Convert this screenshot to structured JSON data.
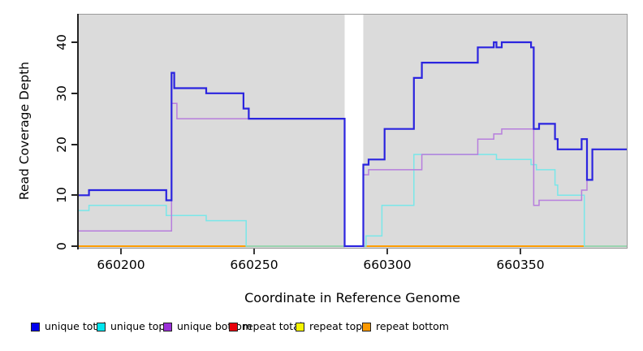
{
  "figure": {
    "title": "",
    "background": "#FFFFFF",
    "panel_background": "#DBDBDB"
  },
  "x_axis": {
    "label": "Coordinate in Reference Genome",
    "tick_labels": [
      "660200",
      "660250",
      "660300",
      "660350"
    ],
    "tick_values": [
      660200,
      660250,
      660300,
      660350
    ]
  },
  "y_axis": {
    "label": "Read Coverage Depth",
    "tick_labels": [
      "0",
      "10",
      "20",
      "30",
      "40"
    ],
    "tick_values": [
      0,
      10,
      20,
      30,
      40
    ]
  },
  "legend": {
    "items": [
      {
        "label": "unique total",
        "color": "#0000EE"
      },
      {
        "label": "unique top",
        "color": "#00E5EE"
      },
      {
        "label": "unique bottom",
        "color": "#9B30D8"
      },
      {
        "label": "repeat total",
        "color": "#E8000B"
      },
      {
        "label": "repeat top",
        "color": "#F5F500"
      },
      {
        "label": "repeat bottom",
        "color": "#FB9902"
      }
    ]
  },
  "chart_data": {
    "type": "line",
    "subtype": "step",
    "title": "",
    "xlabel": "Coordinate in Reference Genome",
    "ylabel": "Read Coverage Depth",
    "xlim": [
      660184,
      660390
    ],
    "ylim": [
      0,
      45
    ],
    "x_ticks": [
      660200,
      660250,
      660300,
      660350
    ],
    "y_ticks": [
      0,
      10,
      20,
      30,
      40
    ],
    "grid": false,
    "legend_position": "bottom",
    "gap_region": {
      "x_start": 660284,
      "x_end": 660291,
      "color": "#FFFFFF"
    },
    "x_end": 660390,
    "series": [
      {
        "name": "repeat total",
        "color": "#DD0000",
        "width": 1.2,
        "points": [
          [
            660184,
            0
          ]
        ]
      },
      {
        "name": "repeat top",
        "color": "#F0F000",
        "width": 1.2,
        "points": [
          [
            660184,
            0
          ]
        ]
      },
      {
        "name": "repeat bottom",
        "color": "#FF9D00",
        "width": 2,
        "points": [
          [
            660184,
            0
          ]
        ]
      },
      {
        "name": "unique top",
        "color": "#79E7E9",
        "width": 1.5,
        "points": [
          [
            660184,
            7
          ],
          [
            660188,
            8
          ],
          [
            660217,
            6
          ],
          [
            660232,
            5
          ],
          [
            660247,
            0
          ],
          [
            660292,
            2
          ],
          [
            660298,
            8
          ],
          [
            660310,
            18
          ],
          [
            660341,
            17
          ],
          [
            660354,
            16
          ],
          [
            660356,
            15
          ],
          [
            660363,
            12
          ],
          [
            660364,
            10
          ],
          [
            660374,
            0
          ]
        ]
      },
      {
        "name": "unique bottom",
        "color": "#B77EDD",
        "width": 1.5,
        "points": [
          [
            660184,
            3
          ],
          [
            660219,
            28
          ],
          [
            660221,
            25
          ],
          [
            660284,
            0
          ],
          [
            660291,
            14
          ],
          [
            660293,
            15
          ],
          [
            660313,
            18
          ],
          [
            660334,
            21
          ],
          [
            660340,
            22
          ],
          [
            660343,
            23
          ],
          [
            660355,
            8
          ],
          [
            660357,
            9
          ],
          [
            660373,
            11
          ],
          [
            660375,
            13
          ],
          [
            660377,
            19
          ]
        ]
      },
      {
        "name": "unique total",
        "color": "#2B24DF",
        "width": 2.2,
        "points": [
          [
            660184,
            10
          ],
          [
            660188,
            11
          ],
          [
            660217,
            9
          ],
          [
            660219,
            34
          ],
          [
            660220,
            31
          ],
          [
            660232,
            30
          ],
          [
            660246,
            27
          ],
          [
            660248,
            25
          ],
          [
            660284,
            0
          ],
          [
            660291,
            16
          ],
          [
            660293,
            17
          ],
          [
            660299,
            23
          ],
          [
            660310,
            33
          ],
          [
            660313,
            36
          ],
          [
            660334,
            39
          ],
          [
            660340,
            40
          ],
          [
            660341,
            39
          ],
          [
            660343,
            40
          ],
          [
            660354,
            39
          ],
          [
            660355,
            23
          ],
          [
            660357,
            24
          ],
          [
            660363,
            21
          ],
          [
            660364,
            19
          ],
          [
            660373,
            21
          ],
          [
            660375,
            13
          ],
          [
            660377,
            19
          ]
        ]
      }
    ]
  }
}
